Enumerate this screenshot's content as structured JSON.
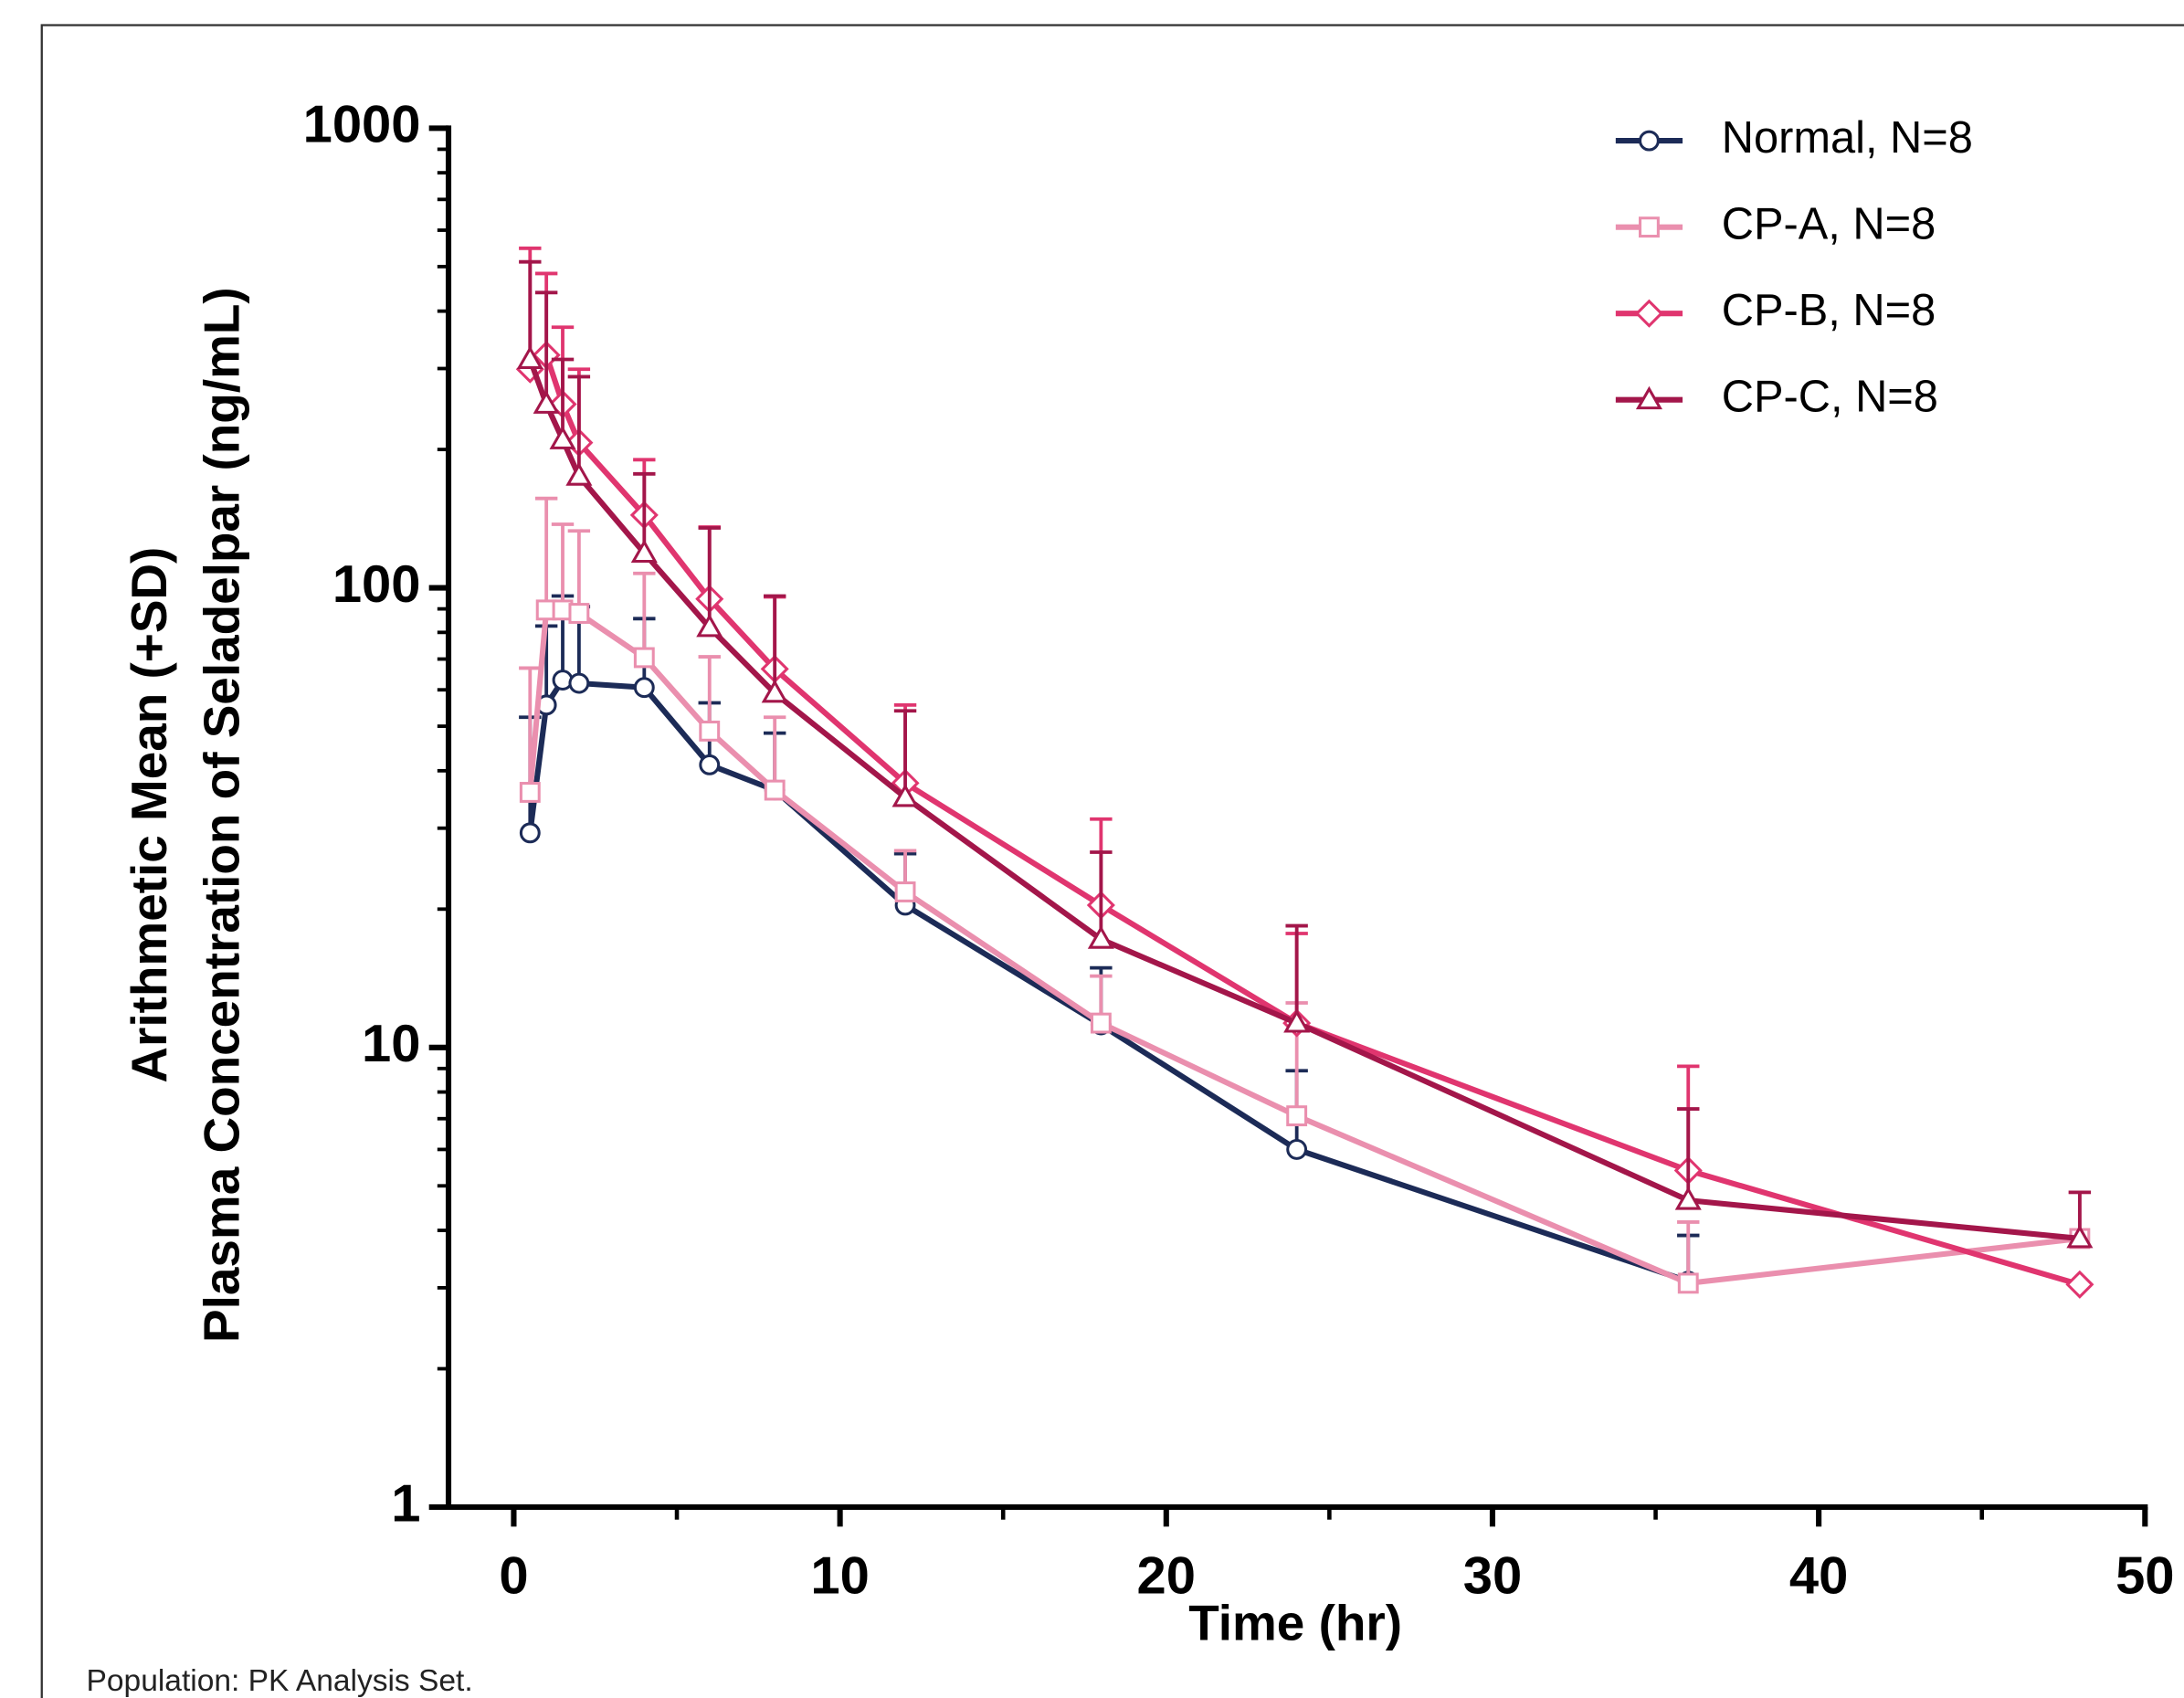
{
  "chart_data": {
    "type": "line",
    "log_y": true,
    "ylabel": [
      "Arithmetic Mean (+SD)",
      "Plasma Concentration of Seladelpar (ng/mL)"
    ],
    "xlabel": "Time (hr)",
    "footnote": "Population: PK Analysis Set.",
    "x": [
      0.5,
      1,
      1.5,
      2,
      4,
      6,
      8,
      12,
      18,
      24,
      36,
      48
    ],
    "xlim": [
      -2,
      50
    ],
    "xticks": [
      0,
      10,
      20,
      30,
      40,
      50
    ],
    "xminorticks": [
      5,
      15,
      25,
      35,
      45
    ],
    "ylim": [
      1,
      1000
    ],
    "yticks": [
      1,
      10,
      100,
      1000
    ],
    "yminorticks": [
      2,
      3,
      4,
      5,
      6,
      7,
      8,
      9,
      20,
      30,
      40,
      50,
      60,
      70,
      80,
      90,
      200,
      300,
      400,
      500,
      600,
      700,
      800,
      900
    ],
    "legend": "upper right",
    "series": [
      {
        "name": "Normal, N=8",
        "color": "#1c2b57",
        "marker": "circle",
        "values": [
          29.3,
          55.6,
          63,
          62,
          60.7,
          41.2,
          36.3,
          20.4,
          11.2,
          6.0,
          3.1,
          null
        ],
        "errors": [
          23,
          27,
          33,
          29,
          25,
          15,
          12,
          6,
          3.7,
          2.9,
          0.8,
          null
        ]
      },
      {
        "name": "CP-A, N=8",
        "color": "#ea8fae",
        "marker": "square",
        "values": [
          35.9,
          89.5,
          89.5,
          88,
          70.5,
          48.8,
          36.3,
          21.8,
          11.3,
          7.1,
          3.07,
          3.84
        ],
        "errors": [
          31,
          67,
          48,
          45,
          37,
          22,
          16,
          5,
          3,
          5.4,
          1.1,
          1
        ]
      },
      {
        "name": "CP-B, N=8",
        "color": "#e0356f",
        "marker": "diamond",
        "values": [
          299,
          321,
          251,
          207,
          144,
          94.6,
          66.6,
          37.6,
          20.4,
          11.3,
          5.4,
          3.05
        ],
        "errors": [
          249,
          162,
          118,
          92,
          46,
          41,
          29,
          18,
          11,
          6.4,
          3.7,
          null
        ]
      },
      {
        "name": "CP-C, N=8",
        "color": "#a3164a",
        "marker": "triangle",
        "values": [
          314,
          251,
          210,
          175,
          119,
          82,
          59,
          35,
          17.2,
          11.3,
          4.65,
          3.84
        ],
        "errors": [
          198,
          188,
          104,
          113,
          58,
          53,
          37,
          19,
          9.4,
          7.1,
          2.7,
          1.0
        ]
      }
    ]
  }
}
